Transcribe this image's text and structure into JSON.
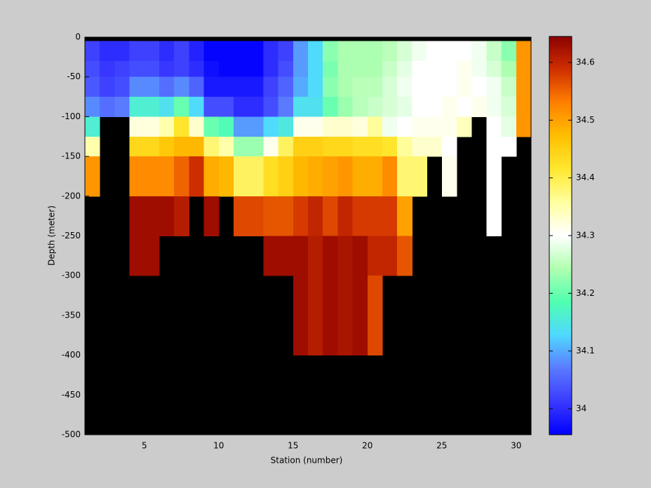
{
  "chart_data": {
    "type": "heatmap",
    "xlabel": "Station (number)",
    "ylabel": "Depth (meter)",
    "x": [
      1,
      2,
      3,
      4,
      5,
      6,
      7,
      8,
      9,
      10,
      11,
      12,
      13,
      14,
      15,
      16,
      17,
      18,
      19,
      20,
      21,
      22,
      23,
      24,
      25,
      26,
      27,
      28,
      29,
      30,
      31
    ],
    "y": [
      -5,
      -30,
      -50,
      -75,
      -100,
      -125,
      -150,
      -200,
      -250,
      -300,
      -400
    ],
    "values": [
      [
        34.02,
        34.0,
        34.0,
        34.02,
        34.02,
        34.0,
        34.02,
        33.99,
        33.96,
        33.96,
        33.96,
        33.96,
        34.0,
        34.02,
        34.09,
        34.13,
        34.22,
        34.24,
        34.24,
        34.24,
        34.25,
        34.27,
        34.29,
        34.3,
        34.3,
        34.3,
        34.29,
        34.26,
        34.22,
        34.51
      ],
      [
        34.03,
        34.01,
        34.02,
        34.03,
        34.03,
        34.01,
        34.02,
        34.0,
        33.97,
        33.96,
        33.96,
        33.96,
        34.0,
        34.03,
        34.09,
        34.13,
        34.21,
        34.24,
        34.24,
        34.24,
        34.26,
        34.28,
        34.3,
        34.3,
        34.3,
        34.31,
        34.29,
        34.27,
        34.24,
        34.51
      ],
      [
        34.04,
        34.02,
        34.03,
        34.08,
        34.08,
        34.06,
        34.08,
        34.05,
        33.98,
        33.98,
        33.98,
        33.98,
        34.02,
        34.05,
        34.1,
        34.13,
        34.22,
        34.24,
        34.25,
        34.25,
        34.27,
        34.29,
        34.3,
        34.3,
        34.3,
        34.31,
        34.3,
        34.29,
        34.26,
        34.51
      ],
      [
        34.08,
        34.06,
        34.07,
        34.16,
        34.16,
        34.14,
        34.2,
        34.13,
        34.03,
        34.03,
        34.0,
        34.0,
        34.03,
        34.07,
        34.14,
        34.14,
        34.2,
        34.23,
        34.25,
        34.26,
        34.27,
        34.28,
        34.3,
        34.3,
        34.31,
        34.3,
        34.31,
        34.29,
        34.27,
        34.51
      ],
      [
        34.16,
        null,
        null,
        34.32,
        34.32,
        34.35,
        34.42,
        34.33,
        34.2,
        34.18,
        34.09,
        34.09,
        34.13,
        34.15,
        34.31,
        34.31,
        34.33,
        34.33,
        34.32,
        34.36,
        34.29,
        34.3,
        34.31,
        34.31,
        34.31,
        34.34,
        null,
        34.3,
        34.28,
        34.51
      ],
      [
        34.35,
        null,
        null,
        34.44,
        34.44,
        34.46,
        34.48,
        34.48,
        34.38,
        34.35,
        34.23,
        34.23,
        34.31,
        34.39,
        34.45,
        34.45,
        34.44,
        34.44,
        34.43,
        34.43,
        34.42,
        34.36,
        34.33,
        34.33,
        34.3,
        null,
        null,
        34.3,
        34.3,
        null
      ],
      [
        34.51,
        null,
        null,
        34.52,
        34.52,
        34.52,
        34.55,
        34.59,
        34.49,
        34.48,
        34.39,
        34.39,
        34.43,
        34.45,
        34.48,
        34.49,
        34.5,
        34.51,
        34.49,
        34.49,
        34.52,
        34.38,
        34.38,
        null,
        34.31,
        null,
        null,
        34.3,
        null,
        null
      ],
      [
        null,
        null,
        null,
        34.63,
        34.63,
        34.63,
        34.61,
        null,
        34.63,
        null,
        34.57,
        34.57,
        34.56,
        34.56,
        34.58,
        34.6,
        34.57,
        34.6,
        34.58,
        34.58,
        34.58,
        34.5,
        null,
        null,
        null,
        null,
        null,
        34.3,
        null,
        null
      ],
      [
        null,
        null,
        null,
        34.63,
        34.63,
        null,
        null,
        null,
        null,
        null,
        null,
        null,
        34.63,
        34.63,
        34.63,
        34.61,
        34.63,
        34.62,
        34.63,
        34.6,
        34.6,
        34.56,
        null,
        null,
        null,
        null,
        null,
        null,
        null,
        null
      ],
      [
        null,
        null,
        null,
        null,
        null,
        null,
        null,
        null,
        null,
        null,
        null,
        null,
        null,
        null,
        34.63,
        34.61,
        34.63,
        34.62,
        34.63,
        34.57,
        null,
        null,
        null,
        null,
        null,
        null,
        null,
        null,
        null,
        null
      ]
    ],
    "xlim": [
      1,
      31
    ],
    "ylim": [
      -500,
      0
    ],
    "xticks": [
      5,
      10,
      15,
      20,
      25,
      30
    ],
    "yticks": [
      0,
      -50,
      -100,
      -150,
      -200,
      -250,
      -300,
      -350,
      -400,
      -450,
      -500
    ],
    "clim": [
      33.955,
      34.645
    ],
    "cticks": [
      34,
      34.1,
      34.2,
      34.3,
      34.4,
      34.5,
      34.6
    ],
    "colormap": [
      "#0000ff",
      "#3a3aff",
      "#5a7aff",
      "#50d8ff",
      "#50ffb0",
      "#b0ffb0",
      "#ffffff",
      "#ffffa0",
      "#ffe830",
      "#ffc000",
      "#ff8000",
      "#d03000",
      "#8c0000"
    ],
    "background": "#000000"
  }
}
